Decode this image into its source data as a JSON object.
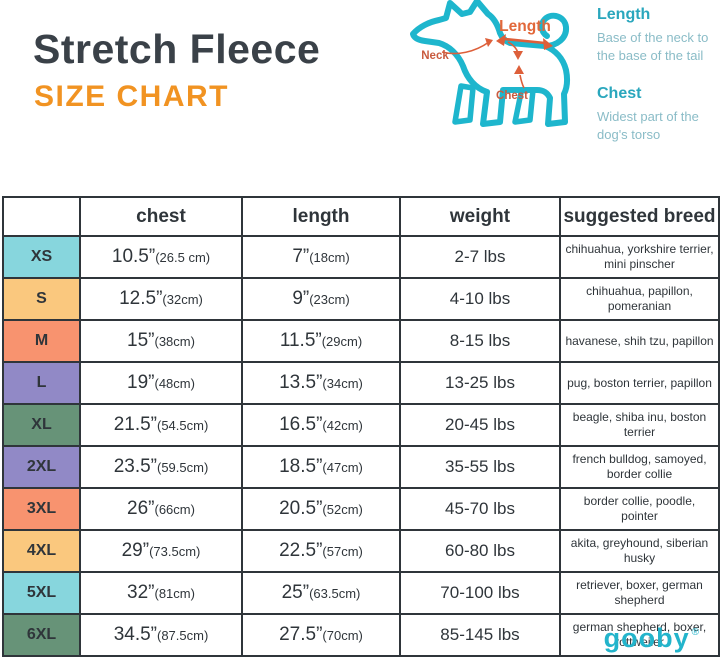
{
  "header": {
    "title": "Stretch Fleece",
    "subtitle": "SIZE CHART"
  },
  "diagram": {
    "labels": {
      "neck": "Neck",
      "length": "Length",
      "chest": "Chest"
    },
    "legend": [
      {
        "term": "Length",
        "desc": "Base of the neck to the base of the tail"
      },
      {
        "term": "Chest",
        "desc": "Widest part of the dog's torso"
      }
    ]
  },
  "table": {
    "columns": [
      "",
      "chest",
      "length",
      "weight",
      "suggested breed"
    ],
    "rows": [
      {
        "size": "XS",
        "color": "#87d6dd",
        "chest_in": "10.5”",
        "chest_cm": "(26.5 cm)",
        "length_in": "7”",
        "length_cm": "(18cm)",
        "weight": "2-7 lbs",
        "breed": "chihuahua, yorkshire terrier, mini pinscher"
      },
      {
        "size": "S",
        "color": "#fac87e",
        "chest_in": "12.5”",
        "chest_cm": "(32cm)",
        "length_in": "9”",
        "length_cm": "(23cm)",
        "weight": "4-10 lbs",
        "breed": "chihuahua, papillon, pomeranian"
      },
      {
        "size": "M",
        "color": "#f8936f",
        "chest_in": "15”",
        "chest_cm": "(38cm)",
        "length_in": "11.5”",
        "length_cm": "(29cm)",
        "weight": "8-15 lbs",
        "breed": "havanese, shih tzu, papillon"
      },
      {
        "size": "L",
        "color": "#9189c6",
        "chest_in": "19”",
        "chest_cm": "(48cm)",
        "length_in": "13.5”",
        "length_cm": "(34cm)",
        "weight": "13-25 lbs",
        "breed": "pug, boston terrier, papillon"
      },
      {
        "size": "XL",
        "color": "#679378",
        "chest_in": "21.5”",
        "chest_cm": "(54.5cm)",
        "length_in": "16.5”",
        "length_cm": "(42cm)",
        "weight": "20-45 lbs",
        "breed": "beagle, shiba inu, boston terrier"
      },
      {
        "size": "2XL",
        "color": "#9189c6",
        "chest_in": "23.5”",
        "chest_cm": "(59.5cm)",
        "length_in": "18.5”",
        "length_cm": "(47cm)",
        "weight": "35-55 lbs",
        "breed": "french bulldog, samoyed, border collie"
      },
      {
        "size": "3XL",
        "color": "#f8936f",
        "chest_in": "26”",
        "chest_cm": "(66cm)",
        "length_in": "20.5”",
        "length_cm": "(52cm)",
        "weight": "45-70 lbs",
        "breed": "border collie, poodle, pointer"
      },
      {
        "size": "4XL",
        "color": "#fac87e",
        "chest_in": "29”",
        "chest_cm": "(73.5cm)",
        "length_in": "22.5”",
        "length_cm": "(57cm)",
        "weight": "60-80 lbs",
        "breed": "akita, greyhound, siberian husky"
      },
      {
        "size": "5XL",
        "color": "#87d6dd",
        "chest_in": "32”",
        "chest_cm": "(81cm)",
        "length_in": "25”",
        "length_cm": "(63.5cm)",
        "weight": "70-100 lbs",
        "breed": "retriever, boxer, german shepherd"
      },
      {
        "size": "6XL",
        "color": "#679378",
        "chest_in": "34.5”",
        "chest_cm": "(87.5cm)",
        "length_in": "27.5”",
        "length_cm": "(70cm)",
        "weight": "85-145 lbs",
        "breed": "german shepherd, boxer, rottweiler"
      }
    ]
  },
  "footer": {
    "logo": "gooby",
    "registered": "®"
  },
  "colors": {
    "accent_orange": "#f19322",
    "teal_bright": "#23b4cb",
    "teal_heading": "#2aa7bd",
    "teal_muted": "#8abcc7",
    "annotation_orange": "#dd5f3a",
    "annotation_brick": "#c95c40",
    "table_border": "#2f353a",
    "text_dark": "#3a4148",
    "cell_cyan": "#87d6dd",
    "cell_peach": "#fac87e",
    "cell_coral": "#f8936f",
    "cell_purple": "#9189c6",
    "cell_green": "#679378"
  }
}
